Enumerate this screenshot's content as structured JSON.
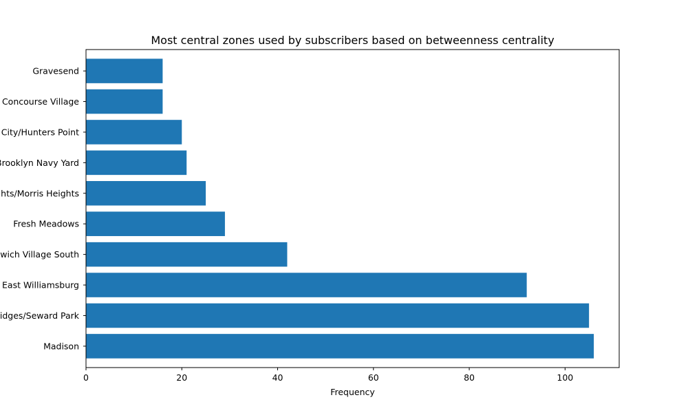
{
  "chart_data": {
    "type": "bar",
    "orientation": "horizontal",
    "title": "Most central zones used by subscribers based on betweenness centrality",
    "xlabel": "Frequency",
    "ylabel": "",
    "xlim": [
      0,
      111.3
    ],
    "xticks": [
      0,
      20,
      40,
      60,
      80,
      100
    ],
    "categories": [
      "Gravesend",
      "Concourse Village",
      "Long Island City/Hunters Point",
      "Brooklyn Navy Yard",
      "University Heights/Morris Heights",
      "Fresh Meadows",
      "Greenwich Village South",
      "East Williamsburg",
      "Two Bridges/Seward Park",
      "Madison"
    ],
    "values": [
      16,
      16,
      20,
      21,
      25,
      29,
      42,
      92,
      105,
      106
    ],
    "bar_color": "#1f77b4",
    "grid": false
  }
}
